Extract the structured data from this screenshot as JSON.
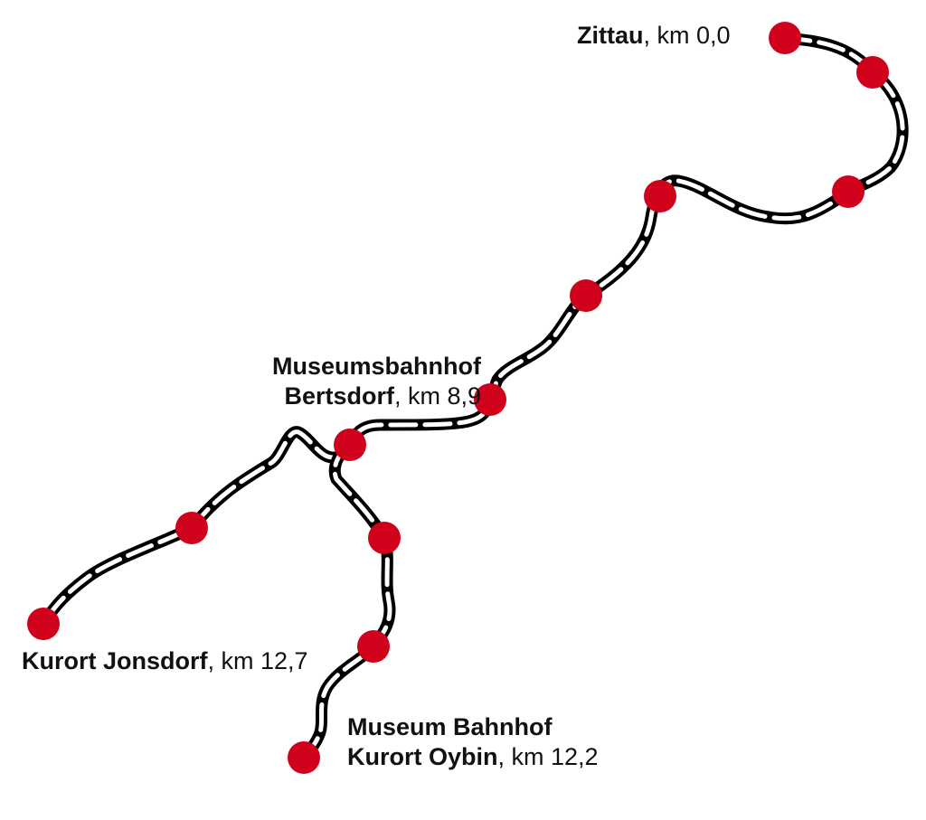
{
  "stations": {
    "zittau": {
      "name": "Zittau",
      "km": ", km 0,0"
    },
    "bertsdorf": {
      "line1": "Museumsbahnhof",
      "name": "Bertsdorf",
      "km": ", km 8,9"
    },
    "jonsdorf": {
      "name": "Kurort Jonsdorf",
      "km": ", km 12,7"
    },
    "oybin": {
      "line1": "Museum Bahnhof",
      "name": "Kurort Oybin",
      "km": ", km 12,2"
    }
  },
  "colors": {
    "station_dot": "#D0021B",
    "track_casing": "#000000",
    "track_inner": "#ffffff"
  }
}
